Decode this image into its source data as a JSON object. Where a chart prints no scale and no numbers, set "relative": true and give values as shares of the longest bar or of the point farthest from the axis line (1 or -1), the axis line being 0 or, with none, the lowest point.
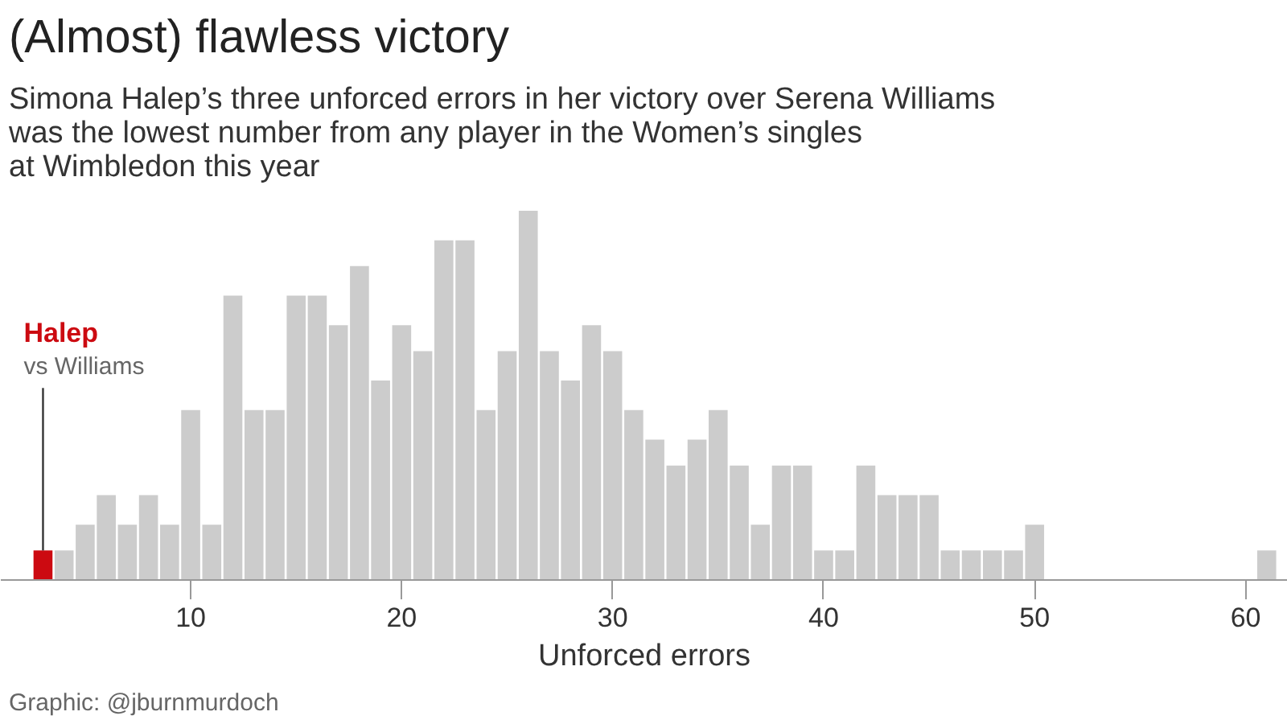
{
  "chart_data": {
    "type": "bar",
    "title": "(Almost) flawless victory",
    "subtitle": "Simona Halep’s three unforced errors in her victory over Serena Williams\nwas the lowest number from any player in the Women’s singles\nat Wimbledon this year",
    "xlabel": "Unforced errors",
    "relative": true,
    "x": [
      3,
      4,
      5,
      6,
      7,
      8,
      9,
      10,
      11,
      12,
      13,
      14,
      15,
      16,
      17,
      18,
      19,
      20,
      21,
      22,
      23,
      24,
      25,
      26,
      27,
      28,
      29,
      30,
      31,
      32,
      33,
      34,
      35,
      36,
      37,
      38,
      39,
      40,
      41,
      42,
      43,
      44,
      45,
      46,
      47,
      48,
      49,
      50,
      51,
      52,
      53,
      54,
      55,
      56,
      57,
      58,
      59,
      60,
      61
    ],
    "values": [
      0.08,
      0.08,
      0.15,
      0.23,
      0.15,
      0.23,
      0.15,
      0.46,
      0.15,
      0.77,
      0.46,
      0.46,
      0.77,
      0.77,
      0.69,
      0.85,
      0.54,
      0.69,
      0.62,
      0.92,
      0.92,
      0.46,
      0.62,
      1,
      0.62,
      0.54,
      0.69,
      0.62,
      0.46,
      0.38,
      0.31,
      0.38,
      0.46,
      0.31,
      0.15,
      0.31,
      0.31,
      0.08,
      0.08,
      0.31,
      0.23,
      0.23,
      0.23,
      0.08,
      0.08,
      0.08,
      0.08,
      0.15,
      0,
      0,
      0,
      0,
      0,
      0,
      0,
      0,
      0,
      0,
      0.08
    ],
    "colors": [
      "#cc0a11",
      "#cccccc",
      "#cccccc",
      "#cccccc",
      "#cccccc",
      "#cccccc",
      "#cccccc",
      "#cccccc",
      "#cccccc",
      "#cccccc",
      "#cccccc",
      "#cccccc",
      "#cccccc",
      "#cccccc",
      "#cccccc",
      "#cccccc",
      "#cccccc",
      "#cccccc",
      "#cccccc",
      "#cccccc",
      "#cccccc",
      "#cccccc",
      "#cccccc",
      "#cccccc",
      "#cccccc",
      "#cccccc",
      "#cccccc",
      "#cccccc",
      "#cccccc",
      "#cccccc",
      "#cccccc",
      "#cccccc",
      "#cccccc",
      "#cccccc",
      "#cccccc",
      "#cccccc",
      "#cccccc",
      "#cccccc",
      "#cccccc",
      "#cccccc",
      "#cccccc",
      "#cccccc",
      "#cccccc",
      "#cccccc",
      "#cccccc",
      "#cccccc",
      "#cccccc",
      "#cccccc",
      "#cccccc",
      "#cccccc",
      "#cccccc",
      "#cccccc",
      "#cccccc",
      "#cccccc",
      "#cccccc",
      "#cccccc",
      "#cccccc",
      "#cccccc",
      "#cccccc"
    ],
    "xlim": [
      1,
      62
    ],
    "xticks": [
      10,
      20,
      30,
      40,
      50,
      60
    ],
    "grid": false,
    "annotations": [
      "Halep",
      {
        "text": "vs Williams",
        "x": 3,
        "y": 0.08
      },
      "Graphic: @jburnmurdoch"
    ]
  }
}
